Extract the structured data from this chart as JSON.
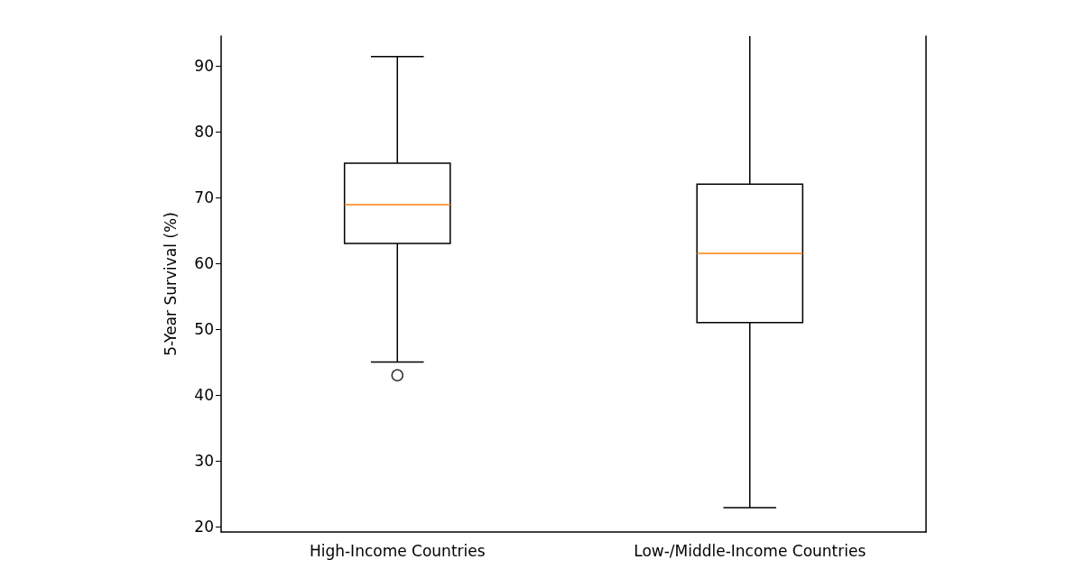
{
  "chart_data": {
    "type": "box",
    "ylabel": "5-Year Survival (%)",
    "categories": [
      "High-Income Countries",
      "Low-/Middle-Income Countries"
    ],
    "boxes": [
      {
        "low": 45,
        "q1": 63,
        "median": 68.9,
        "q3": 75.2,
        "high": 91.4,
        "outliers": [
          43
        ]
      },
      {
        "low": 22.9,
        "q1": 51,
        "median": 61.5,
        "q3": 72,
        "high": 94.5
      }
    ],
    "color": "#000000",
    "ylim": [
      19.2,
      94.5
    ],
    "yticks": [
      20,
      30,
      40,
      50,
      60,
      70,
      80,
      90
    ],
    "grid": false
  }
}
